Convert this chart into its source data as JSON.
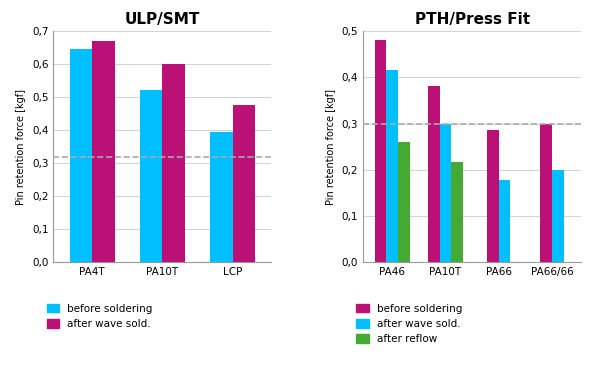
{
  "left_title": "ULP/SMT",
  "right_title": "PTH/Press Fit",
  "ylabel": "Pin retention force [kgf]",
  "left_categories": [
    "PA4T",
    "PA10T",
    "LCP"
  ],
  "right_categories": [
    "PA46",
    "PA10T",
    "PA66",
    "PA66/66"
  ],
  "left_series": {
    "before soldering": [
      0.645,
      0.52,
      0.395
    ],
    "after wave sold.": [
      0.67,
      0.6,
      0.475
    ]
  },
  "right_series": {
    "before soldering": [
      0.48,
      0.38,
      0.285,
      0.3
    ],
    "after wave sold.": [
      0.415,
      0.3,
      0.178,
      0.2
    ],
    "after reflow": [
      0.26,
      0.218,
      null,
      null
    ]
  },
  "left_ylim": [
    0,
    0.7
  ],
  "right_ylim": [
    0,
    0.5
  ],
  "left_yticks": [
    0.0,
    0.1,
    0.2,
    0.3,
    0.4,
    0.5,
    0.6,
    0.7
  ],
  "right_yticks": [
    0.0,
    0.1,
    0.2,
    0.3,
    0.4,
    0.5
  ],
  "left_hline": 0.32,
  "right_hline": 0.3,
  "color_blue": "#00BFFF",
  "color_magenta": "#BB1177",
  "color_green": "#44AA33",
  "left_bar_width": 0.32,
  "right_bar_width": 0.22,
  "bg_color": "#FFFFFF",
  "grid_color": "#CCCCCC",
  "hline_color": "#AAAAAA",
  "title_fontsize": 11,
  "label_fontsize": 7,
  "tick_fontsize": 7.5,
  "legend_fontsize": 7.5
}
